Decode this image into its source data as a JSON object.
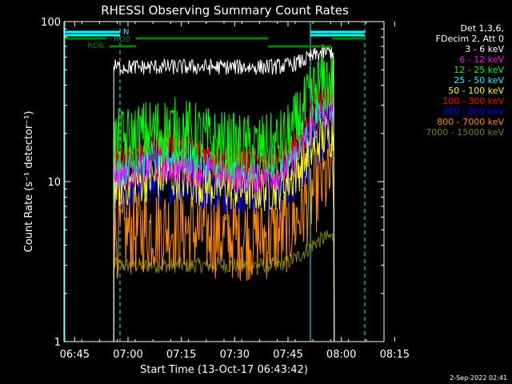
{
  "chart_data": {
    "type": "line",
    "title": "RHESSI Observing Summary Count Rates",
    "xlabel": "Start Time (13-Oct-17 06:43:42)",
    "ylabel": "Count Rate (s⁻¹ detector⁻¹)",
    "ylog": true,
    "ylim": [
      1,
      100
    ],
    "xlim_minutes": [
      -1,
      89
    ],
    "x_ticks": [
      {
        "m": 2,
        "label": "06:45"
      },
      {
        "m": 17,
        "label": "07:00"
      },
      {
        "m": 32,
        "label": "07:15"
      },
      {
        "m": 47,
        "label": "07:30"
      },
      {
        "m": 62,
        "label": "07:45"
      },
      {
        "m": 77,
        "label": "08:00"
      },
      {
        "m": 92,
        "label": "08:15"
      }
    ],
    "y_ticks": [
      {
        "v": 1,
        "label": "1"
      },
      {
        "v": 10,
        "label": "10"
      },
      {
        "v": 100,
        "label": "100"
      }
    ],
    "legend_placement": "right",
    "legend_header": [
      "Det 1,3,6,",
      "FDecim 2, Att 0"
    ],
    "series": [
      {
        "name": "3 - 6 keV",
        "color": "#ffffff",
        "base": 52,
        "amp": 1.25,
        "noise": 0.05,
        "start": 13,
        "end": 75,
        "bump": 0.0
      },
      {
        "name": "6 - 12 keV",
        "color": "#ff00ff",
        "base": 11.0,
        "amp": 2.4,
        "noise": 0.12,
        "start": 13,
        "end": 75,
        "bump": 0.15
      },
      {
        "name": "12 - 25 keV",
        "color": "#00ff00",
        "base": 16.0,
        "amp": 2.7,
        "noise": 0.22,
        "start": 13,
        "end": 75,
        "bump": 0.3
      },
      {
        "name": "25 - 50 keV",
        "color": "#00ffff",
        "base": 11.5,
        "amp": 2.6,
        "noise": 0.13,
        "start": 13,
        "end": 75,
        "bump": 0.25
      },
      {
        "name": "50 - 100 keV",
        "color": "#ffff00",
        "base": 9.0,
        "amp": 2.2,
        "noise": 0.15,
        "start": 13,
        "end": 75,
        "bump": 0.2
      },
      {
        "name": "100 - 300 keV",
        "color": "#ff0000",
        "base": 13.5,
        "amp": 2.6,
        "noise": 0.08,
        "start": 13,
        "end": 75,
        "bump": 0.3
      },
      {
        "name": "300 - 800 keV",
        "color": "#0000ff",
        "base": 8.0,
        "amp": 2.2,
        "noise": 0.12,
        "start": 13,
        "end": 75,
        "bump": 0.2
      },
      {
        "name": "800 - 7000 keV",
        "color": "#ff8c00",
        "base": 4.5,
        "amp": 2.3,
        "noise": 0.28,
        "start": 13,
        "end": 75,
        "bump": 0.15
      },
      {
        "name": "7000 - 15000 keV",
        "color": "#808000",
        "base": 3.0,
        "amp": 1.5,
        "noise": 0.05,
        "start": 13,
        "end": 75,
        "bump": 0.0
      }
    ],
    "flag_labels": {
      "n": "N",
      "rd0": "RD0",
      "rd6": "RD6"
    },
    "footer_date": "2-Sep-2022 02:41"
  }
}
